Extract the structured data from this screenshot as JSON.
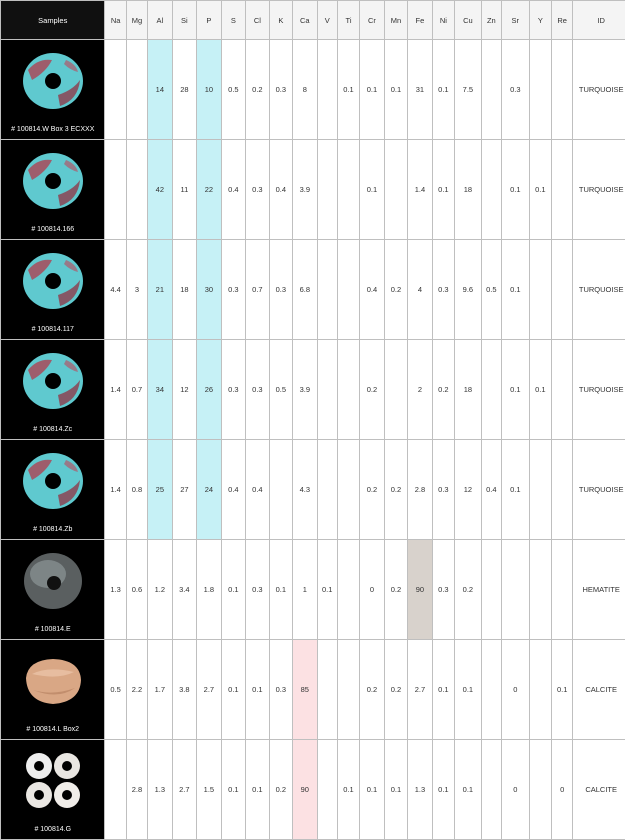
{
  "columns": [
    "Samples",
    "Na",
    "Mg",
    "Al",
    "Si",
    "P",
    "S",
    "Cl",
    "K",
    "Ca",
    "V",
    "Ti",
    "Cr",
    "Mn",
    "Fe",
    "Ni",
    "Cu",
    "Zn",
    "Sr",
    "Y",
    "Re",
    "ID"
  ],
  "rows": [
    {
      "label": "# 100814.W Box 3 ECXXX",
      "icon": "turquoise-bead-image",
      "values": [
        "",
        "",
        "14",
        "28",
        "10",
        "0.5",
        "0.2",
        "0.3",
        "8",
        "",
        "0.1",
        "0.1",
        "0.1",
        "31",
        "0.1",
        "7.5",
        "",
        "0.3",
        "",
        ""
      ],
      "id": "TURQUOISE"
    },
    {
      "label": "# 100814.166",
      "icon": "turquoise-bead-image",
      "values": [
        "",
        "",
        "42",
        "11",
        "22",
        "0.4",
        "0.3",
        "0.4",
        "3.9",
        "",
        "",
        "0.1",
        "",
        "1.4",
        "0.1",
        "18",
        "",
        "0.1",
        "0.1",
        ""
      ],
      "id": "TURQUOISE"
    },
    {
      "label": "# 100814.117",
      "icon": "turquoise-bead-image",
      "values": [
        "4.4",
        "3",
        "21",
        "18",
        "30",
        "0.3",
        "0.7",
        "0.3",
        "6.8",
        "",
        "",
        "0.4",
        "0.2",
        "4",
        "0.3",
        "9.6",
        "0.5",
        "0.1",
        "",
        ""
      ],
      "id": "TURQUOISE"
    },
    {
      "label": "# 100814.Zc",
      "icon": "turquoise-bead-image",
      "values": [
        "1.4",
        "0.7",
        "34",
        "12",
        "26",
        "0.3",
        "0.3",
        "0.5",
        "3.9",
        "",
        "",
        "0.2",
        "",
        "2",
        "0.2",
        "18",
        "",
        "0.1",
        "0.1",
        ""
      ],
      "id": "TURQUOISE"
    },
    {
      "label": "# 100814.Zb",
      "icon": "turquoise-bead-image",
      "values": [
        "1.4",
        "0.8",
        "25",
        "27",
        "24",
        "0.4",
        "0.4",
        "",
        "4.3",
        "",
        "",
        "0.2",
        "0.2",
        "2.8",
        "0.3",
        "12",
        "0.4",
        "0.1",
        "",
        ""
      ],
      "id": "TURQUOISE"
    },
    {
      "label": "# 100814.E",
      "icon": "hematite-bead-image",
      "values": [
        "1.3",
        "0.6",
        "1.2",
        "3.4",
        "1.8",
        "0.1",
        "0.3",
        "0.1",
        "1",
        "0.1",
        "",
        "0",
        "0.2",
        "90",
        "0.3",
        "0.2",
        "",
        "",
        "",
        ""
      ],
      "id": "HEMATITE"
    },
    {
      "label": "# 100814.L Box2",
      "icon": "calcite-bead-image",
      "values": [
        "0.5",
        "2.2",
        "1.7",
        "3.8",
        "2.7",
        "0.1",
        "0.1",
        "0.3",
        "85",
        "",
        "",
        "0.2",
        "0.2",
        "2.7",
        "0.1",
        "0.1",
        "",
        "0",
        "",
        "0.1"
      ],
      "id": "CALCITE"
    },
    {
      "label": "# 100814.G",
      "icon": "calcite-beads-group-image",
      "values": [
        "",
        "2.8",
        "1.3",
        "2.7",
        "1.5",
        "0.1",
        "0.1",
        "0.2",
        "90",
        "",
        "0.1",
        "0.1",
        "0.1",
        "1.3",
        "0.1",
        "0.1",
        "",
        "0",
        "",
        "0"
      ],
      "id": "CALCITE"
    }
  ],
  "colors": {
    "cyan_highlight": "#c6f1f6",
    "gray_highlight": "#d8d2cc",
    "pink_highlight": "#fce1e3"
  }
}
